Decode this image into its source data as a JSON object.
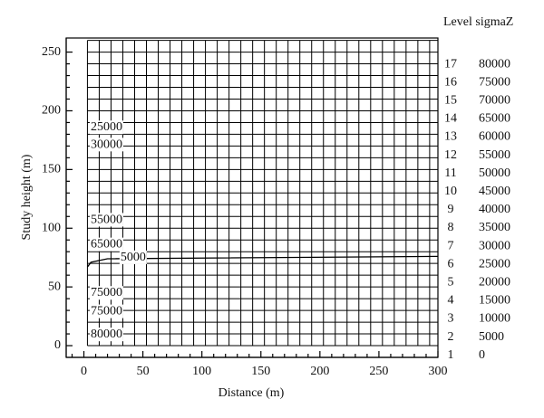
{
  "chart_data": {
    "type": "contour",
    "xlabel": "Distance (m)",
    "ylabel": "Study height (m)",
    "xlim": [
      -15,
      300
    ],
    "ylim": [
      -10,
      262
    ],
    "xticks": [
      0,
      50,
      100,
      150,
      200,
      250,
      300
    ],
    "yticks": [
      0,
      50,
      100,
      150,
      200,
      250
    ],
    "xminorticks": [
      -10,
      10,
      20,
      30,
      40,
      60,
      70,
      80,
      90,
      110,
      120,
      130,
      140,
      160,
      170,
      180,
      190,
      210,
      220,
      230,
      240,
      260,
      270,
      280,
      290
    ],
    "yminorticks": [
      10,
      20,
      30,
      40,
      60,
      70,
      80,
      90,
      110,
      120,
      130,
      140,
      160,
      170,
      180,
      190,
      210,
      220,
      230,
      240
    ],
    "mesh_x": [
      3,
      13,
      23,
      33,
      43,
      53,
      63,
      73,
      83,
      93,
      103,
      113,
      123,
      133,
      143,
      153,
      163,
      173,
      183,
      193,
      203,
      213,
      223,
      233,
      243,
      253,
      263,
      273,
      283,
      293,
      300
    ],
    "mesh_y": [
      0,
      10,
      20,
      30,
      40,
      50,
      60,
      70,
      80,
      90,
      100,
      110,
      120,
      130,
      140,
      150,
      160,
      170,
      180,
      190,
      200,
      210,
      220,
      230,
      240,
      250,
      260
    ],
    "contours": [
      {
        "level": 5000,
        "x": [
          3,
          6,
          20,
          300
        ],
        "y": [
          67,
          71,
          74,
          76
        ]
      }
    ],
    "annotations": [
      {
        "text": 25000,
        "x": 5.7,
        "y": 185.7
      },
      {
        "text": 30000,
        "x": 5.7,
        "y": 171
      },
      {
        "text": 55000,
        "x": 5.7,
        "y": 107
      },
      {
        "text": 65000,
        "x": 5.7,
        "y": 86
      },
      {
        "text": 5000,
        "x": 31,
        "y": 75
      },
      {
        "text": 75000,
        "x": 5.7,
        "y": 44.7
      },
      {
        "text": 75000,
        "x": 5.7,
        "y": 29
      },
      {
        "text": 80000,
        "x": 5.7,
        "y": 9.3
      }
    ],
    "legend": {
      "title": "Level sigmaZ",
      "levels": [
        17,
        16,
        15,
        14,
        13,
        12,
        11,
        10,
        9,
        8,
        7,
        6,
        5,
        4,
        3,
        2,
        1
      ],
      "values": [
        80000,
        75000,
        70000,
        65000,
        60000,
        55000,
        50000,
        45000,
        40000,
        35000,
        30000,
        25000,
        20000,
        15000,
        10000,
        5000,
        0
      ]
    }
  }
}
